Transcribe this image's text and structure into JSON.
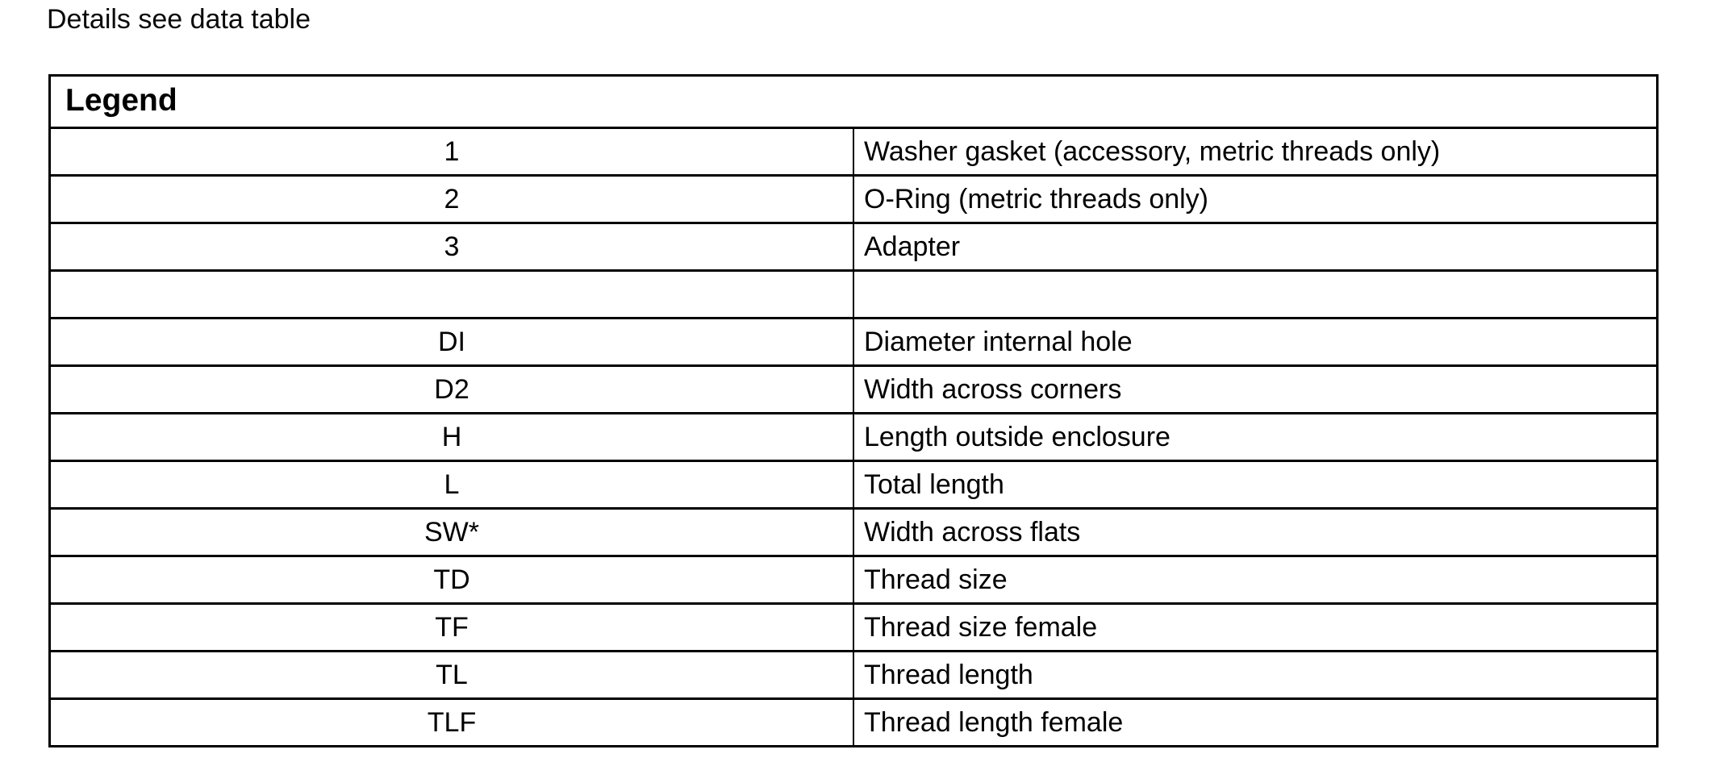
{
  "page": {
    "note": "Details see data table"
  },
  "legend_table": {
    "title": "Legend",
    "rows": [
      {
        "key": "1",
        "description": "Washer gasket (accessory, metric threads only)"
      },
      {
        "key": "2",
        "description": "O-Ring (metric threads only)"
      },
      {
        "key": "3",
        "description": "Adapter"
      },
      {
        "key": "",
        "description": ""
      },
      {
        "key": "DI",
        "description": "Diameter internal hole"
      },
      {
        "key": "D2",
        "description": "Width across corners"
      },
      {
        "key": "H",
        "description": "Length outside enclosure"
      },
      {
        "key": "L",
        "description": "Total length"
      },
      {
        "key": "SW*",
        "description": "Width across flats"
      },
      {
        "key": "TD",
        "description": "Thread size"
      },
      {
        "key": "TF",
        "description": "Thread size female"
      },
      {
        "key": "TL",
        "description": "Thread length"
      },
      {
        "key": "TLF",
        "description": "Thread length female"
      }
    ]
  },
  "colors": {
    "background": "#ffffff",
    "border": "#000000",
    "text": "#000000"
  }
}
